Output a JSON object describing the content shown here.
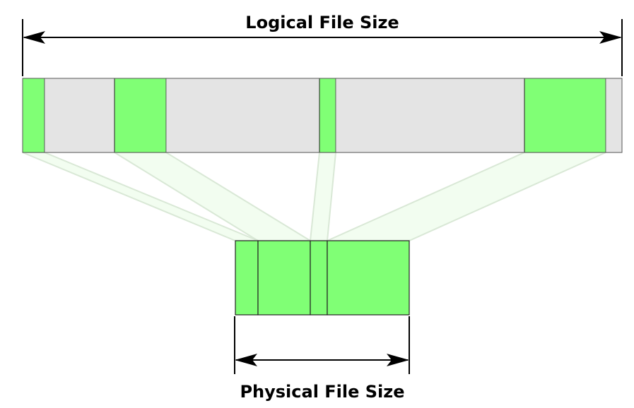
{
  "labels": {
    "logical": "Logical File Size",
    "physical": "Physical File Size"
  },
  "colors": {
    "data_block": "#80ff75",
    "hole": "#e4e4e4",
    "mapping_fill": "#f2fdf0",
    "mapping_stroke": "#d9e8d6",
    "line": "#000000",
    "block_outline": "#222222"
  },
  "logical_file": {
    "segments": [
      {
        "kind": "data"
      },
      {
        "kind": "hole"
      },
      {
        "kind": "data"
      },
      {
        "kind": "hole"
      },
      {
        "kind": "data"
      },
      {
        "kind": "hole"
      },
      {
        "kind": "data"
      },
      {
        "kind": "hole"
      }
    ]
  },
  "physical_file": {
    "blocks": [
      {
        "maps_to_logical_segment": 0
      },
      {
        "maps_to_logical_segment": 2
      },
      {
        "maps_to_logical_segment": 4
      },
      {
        "maps_to_logical_segment": 6
      }
    ]
  }
}
